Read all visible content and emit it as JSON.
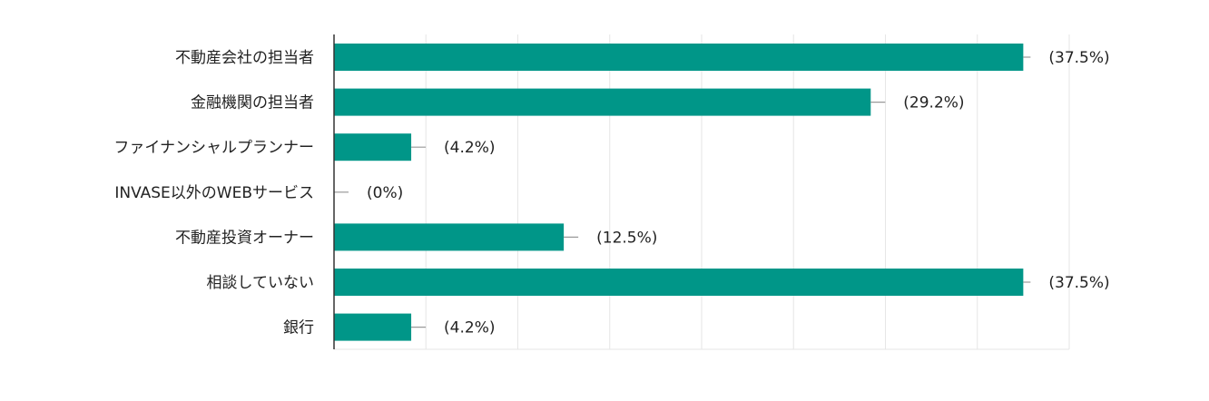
{
  "chart_data": {
    "type": "bar",
    "orientation": "horizontal",
    "title": "",
    "xlabel": "",
    "ylabel": "",
    "categories": [
      "不動産会社の担当者",
      "金融機関の担当者",
      "ファイナンシャルプランナー",
      "INVASE以外のWEBサービス",
      "不動産投資オーナー",
      "相談していない",
      "銀行"
    ],
    "values": [
      37.5,
      29.2,
      4.2,
      0,
      12.5,
      37.5,
      4.2
    ],
    "value_labels": [
      "(37.5%)",
      "(29.2%)",
      "(4.2%)",
      "(0%)",
      "(12.5%)",
      "(37.5%)",
      "(4.2%)"
    ],
    "xlim": [
      0,
      40
    ],
    "grid": true,
    "legend": "none",
    "bar_color": "#009688",
    "grid_color": "#e6e6e6",
    "axis_color": "#333333",
    "whisker_color": "#999999",
    "text_color": "#222222"
  }
}
